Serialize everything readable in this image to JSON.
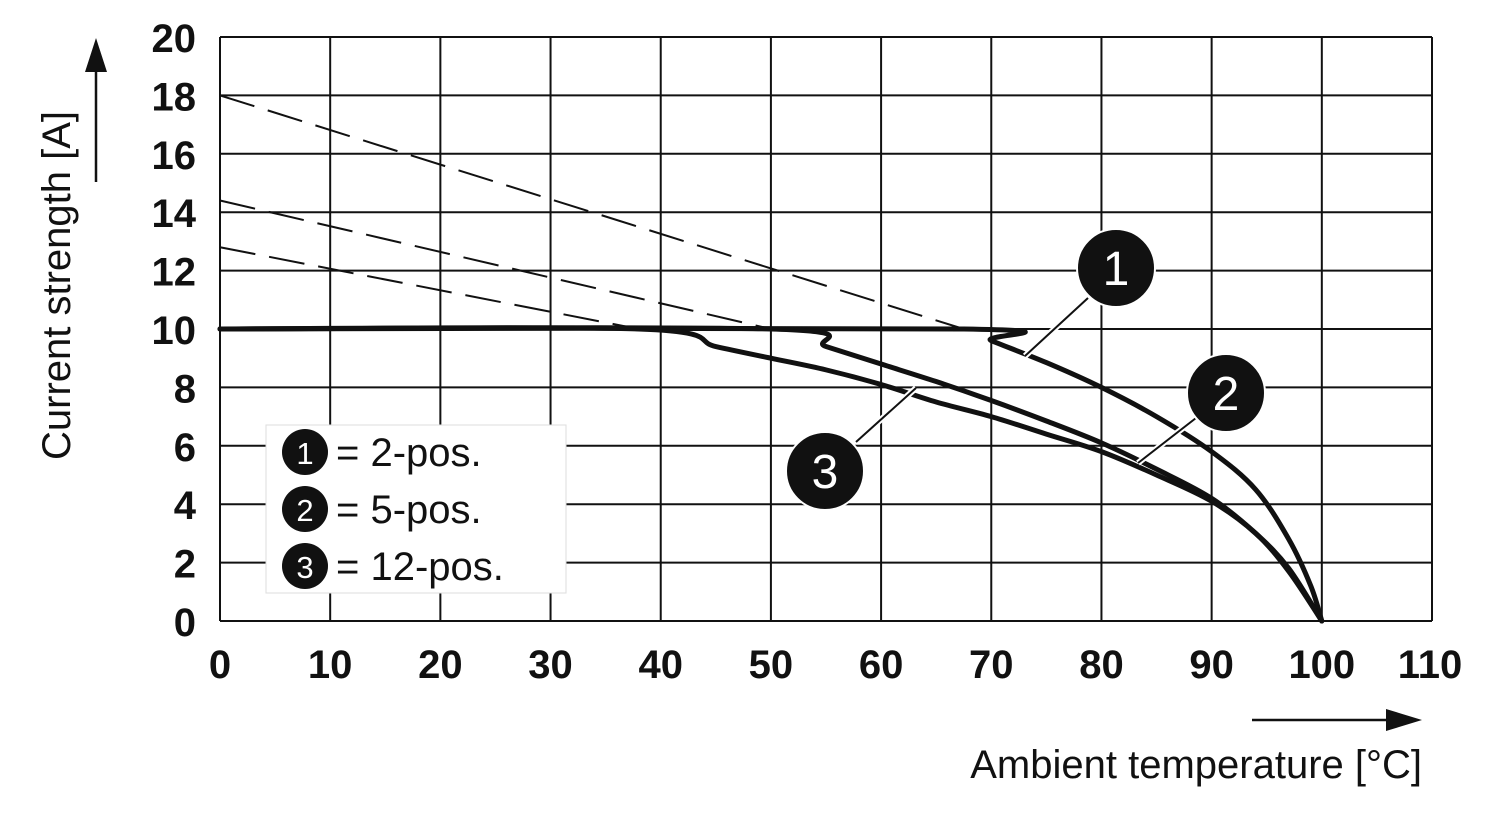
{
  "chart_data": {
    "type": "line",
    "xlabel": "Ambient temperature [°C]",
    "ylabel": "Current strength [A]",
    "xlim": [
      0,
      110
    ],
    "ylim": [
      0,
      20
    ],
    "x_ticks": [
      "0",
      "10",
      "20",
      "30",
      "40",
      "50",
      "60",
      "70",
      "80",
      "90",
      "100",
      "110"
    ],
    "y_ticks": [
      "0",
      "2",
      "4",
      "6",
      "8",
      "10",
      "12",
      "14",
      "16",
      "18",
      "20"
    ],
    "grid": true,
    "legend_position": "bottom-left",
    "series": [
      {
        "name": "1",
        "label": "= 2-pos.",
        "points": [
          [
            0,
            10
          ],
          [
            67.5,
            10
          ],
          [
            70,
            9.6
          ],
          [
            75,
            8.85
          ],
          [
            80,
            8.0
          ],
          [
            85,
            7.0
          ],
          [
            90,
            5.8
          ],
          [
            94,
            4.5
          ],
          [
            97,
            2.8
          ],
          [
            99,
            1.2
          ],
          [
            100,
            0
          ]
        ],
        "extrapolated": [
          [
            0,
            18
          ],
          [
            67.5,
            10
          ]
        ]
      },
      {
        "name": "2",
        "label": "= 5-pos.",
        "points": [
          [
            0,
            10
          ],
          [
            50,
            10
          ],
          [
            55,
            9.4
          ],
          [
            60,
            8.8
          ],
          [
            65,
            8.2
          ],
          [
            70,
            7.55
          ],
          [
            75,
            6.85
          ],
          [
            80,
            6.1
          ],
          [
            85,
            5.2
          ],
          [
            90,
            4.2
          ],
          [
            94,
            3.0
          ],
          [
            97,
            1.8
          ],
          [
            100,
            0
          ]
        ],
        "extrapolated": [
          [
            0,
            14.4
          ],
          [
            50,
            10
          ]
        ]
      },
      {
        "name": "3",
        "label": "= 12-pos.",
        "points": [
          [
            0,
            10
          ],
          [
            38,
            10
          ],
          [
            45,
            9.4
          ],
          [
            50,
            9.0
          ],
          [
            55,
            8.6
          ],
          [
            60,
            8.1
          ],
          [
            65,
            7.5
          ],
          [
            70,
            7.0
          ],
          [
            75,
            6.4
          ],
          [
            80,
            5.8
          ],
          [
            85,
            5.0
          ],
          [
            90,
            4.1
          ],
          [
            94,
            3.0
          ],
          [
            97,
            1.7
          ],
          [
            100,
            0
          ]
        ],
        "extrapolated": [
          [
            0,
            12.8
          ],
          [
            38,
            10
          ]
        ]
      }
    ]
  }
}
